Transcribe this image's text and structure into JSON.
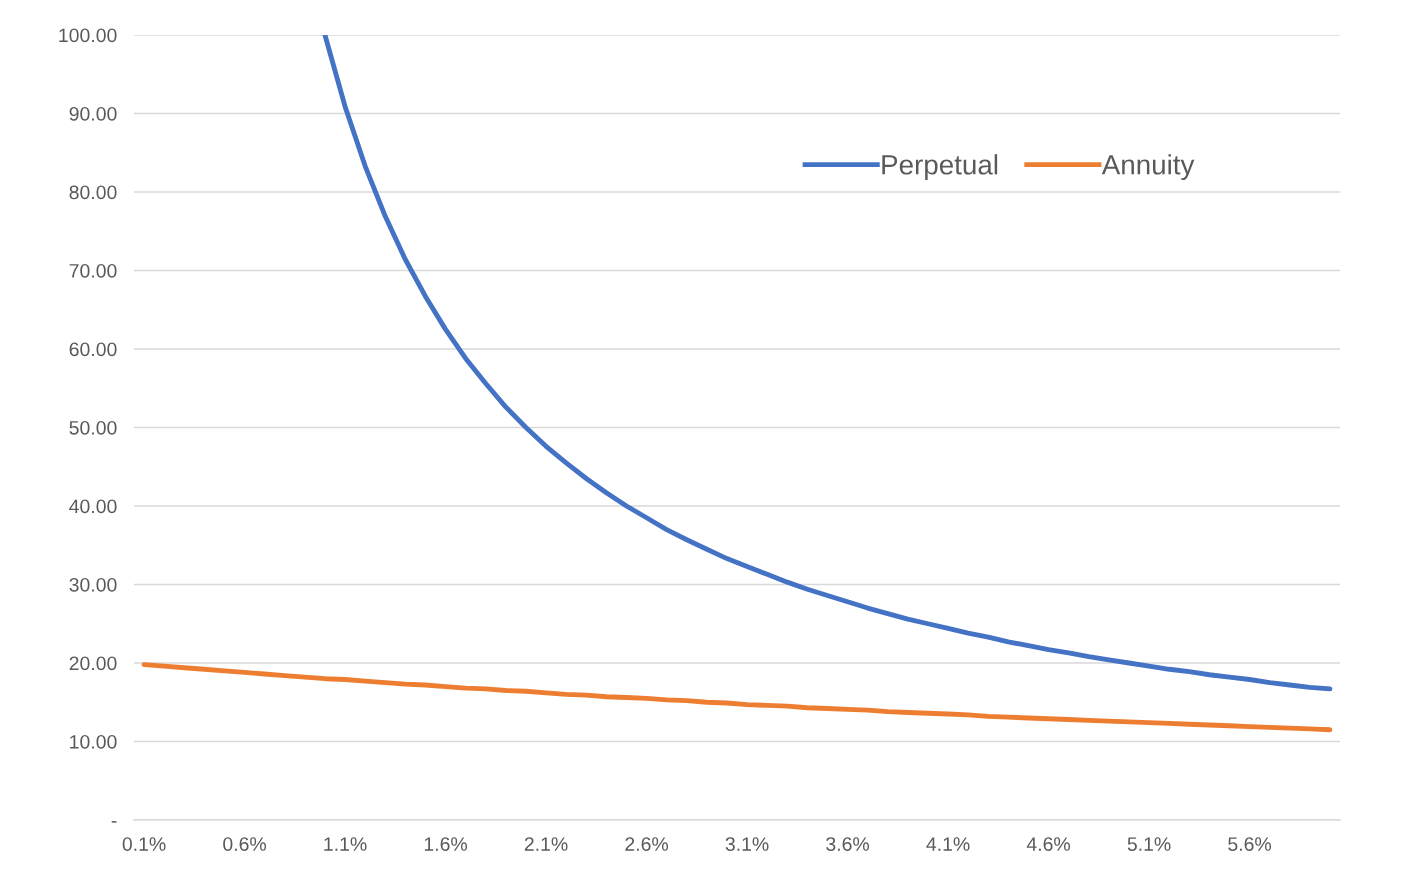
{
  "chart_data": {
    "type": "line",
    "categories": [
      "0.1%",
      null,
      null,
      null,
      null,
      "0.6%",
      null,
      null,
      null,
      null,
      "1.1%",
      null,
      null,
      null,
      null,
      "1.6%",
      null,
      null,
      null,
      null,
      "2.1%",
      null,
      null,
      null,
      null,
      "2.6%",
      null,
      null,
      null,
      null,
      "3.1%",
      null,
      null,
      null,
      null,
      "3.6%",
      null,
      null,
      null,
      null,
      "4.1%",
      null,
      null,
      null,
      null,
      "4.6%",
      null,
      null,
      null,
      null,
      "5.1%",
      null,
      null,
      null,
      null,
      "5.6%",
      null,
      null,
      null,
      null
    ],
    "series": [
      {
        "name": "Perpetual",
        "color": "#4472c4",
        "values": [
          null,
          null,
          null,
          null,
          null,
          null,
          null,
          null,
          null,
          100,
          90.9,
          83.3,
          76.9,
          71.4,
          66.7,
          62.5,
          58.8,
          55.6,
          52.6,
          50,
          47.6,
          45.5,
          43.5,
          41.7,
          40,
          38.5,
          37.0,
          35.7,
          34.5,
          33.3,
          32.3,
          31.3,
          30.3,
          29.4,
          28.6,
          27.8,
          27.0,
          26.3,
          25.6,
          25,
          24.4,
          23.8,
          23.3,
          22.7,
          22.2,
          21.7,
          21.3,
          20.8,
          20.4,
          20,
          19.6,
          19.2,
          18.9,
          18.5,
          18.2,
          17.9,
          17.5,
          17.2,
          16.9,
          16.7
        ]
      },
      {
        "name": "Annuity",
        "color": "#ed7d31",
        "values": [
          19.8,
          19.6,
          19.4,
          19.2,
          19.0,
          18.8,
          18.6,
          18.4,
          18.2,
          18.0,
          17.9,
          17.7,
          17.5,
          17.3,
          17.2,
          17.0,
          16.8,
          16.7,
          16.5,
          16.4,
          16.2,
          16.0,
          15.9,
          15.7,
          15.6,
          15.5,
          15.3,
          15.2,
          15.0,
          14.9,
          14.7,
          14.6,
          14.5,
          14.3,
          14.2,
          14.1,
          14.0,
          13.8,
          13.7,
          13.6,
          13.5,
          13.4,
          13.2,
          13.1,
          13.0,
          12.9,
          12.8,
          12.7,
          12.6,
          12.5,
          12.4,
          12.3,
          12.2,
          12.1,
          12.0,
          11.9,
          11.8,
          11.7,
          11.6,
          11.5
        ]
      }
    ],
    "ylim": [
      0,
      100
    ],
    "yticks": [
      {
        "value": 0,
        "label": "-"
      },
      {
        "value": 10,
        "label": "10.00"
      },
      {
        "value": 20,
        "label": "20.00"
      },
      {
        "value": 30,
        "label": "30.00"
      },
      {
        "value": 40,
        "label": "40.00"
      },
      {
        "value": 50,
        "label": "50.00"
      },
      {
        "value": 60,
        "label": "60.00"
      },
      {
        "value": 70,
        "label": "70.00"
      },
      {
        "value": 80,
        "label": "80.00"
      },
      {
        "value": 90,
        "label": "90.00"
      },
      {
        "value": 100,
        "label": "100.00"
      }
    ],
    "grid": "y",
    "legend": "top right",
    "marker": "none",
    "line_style": "solid"
  }
}
